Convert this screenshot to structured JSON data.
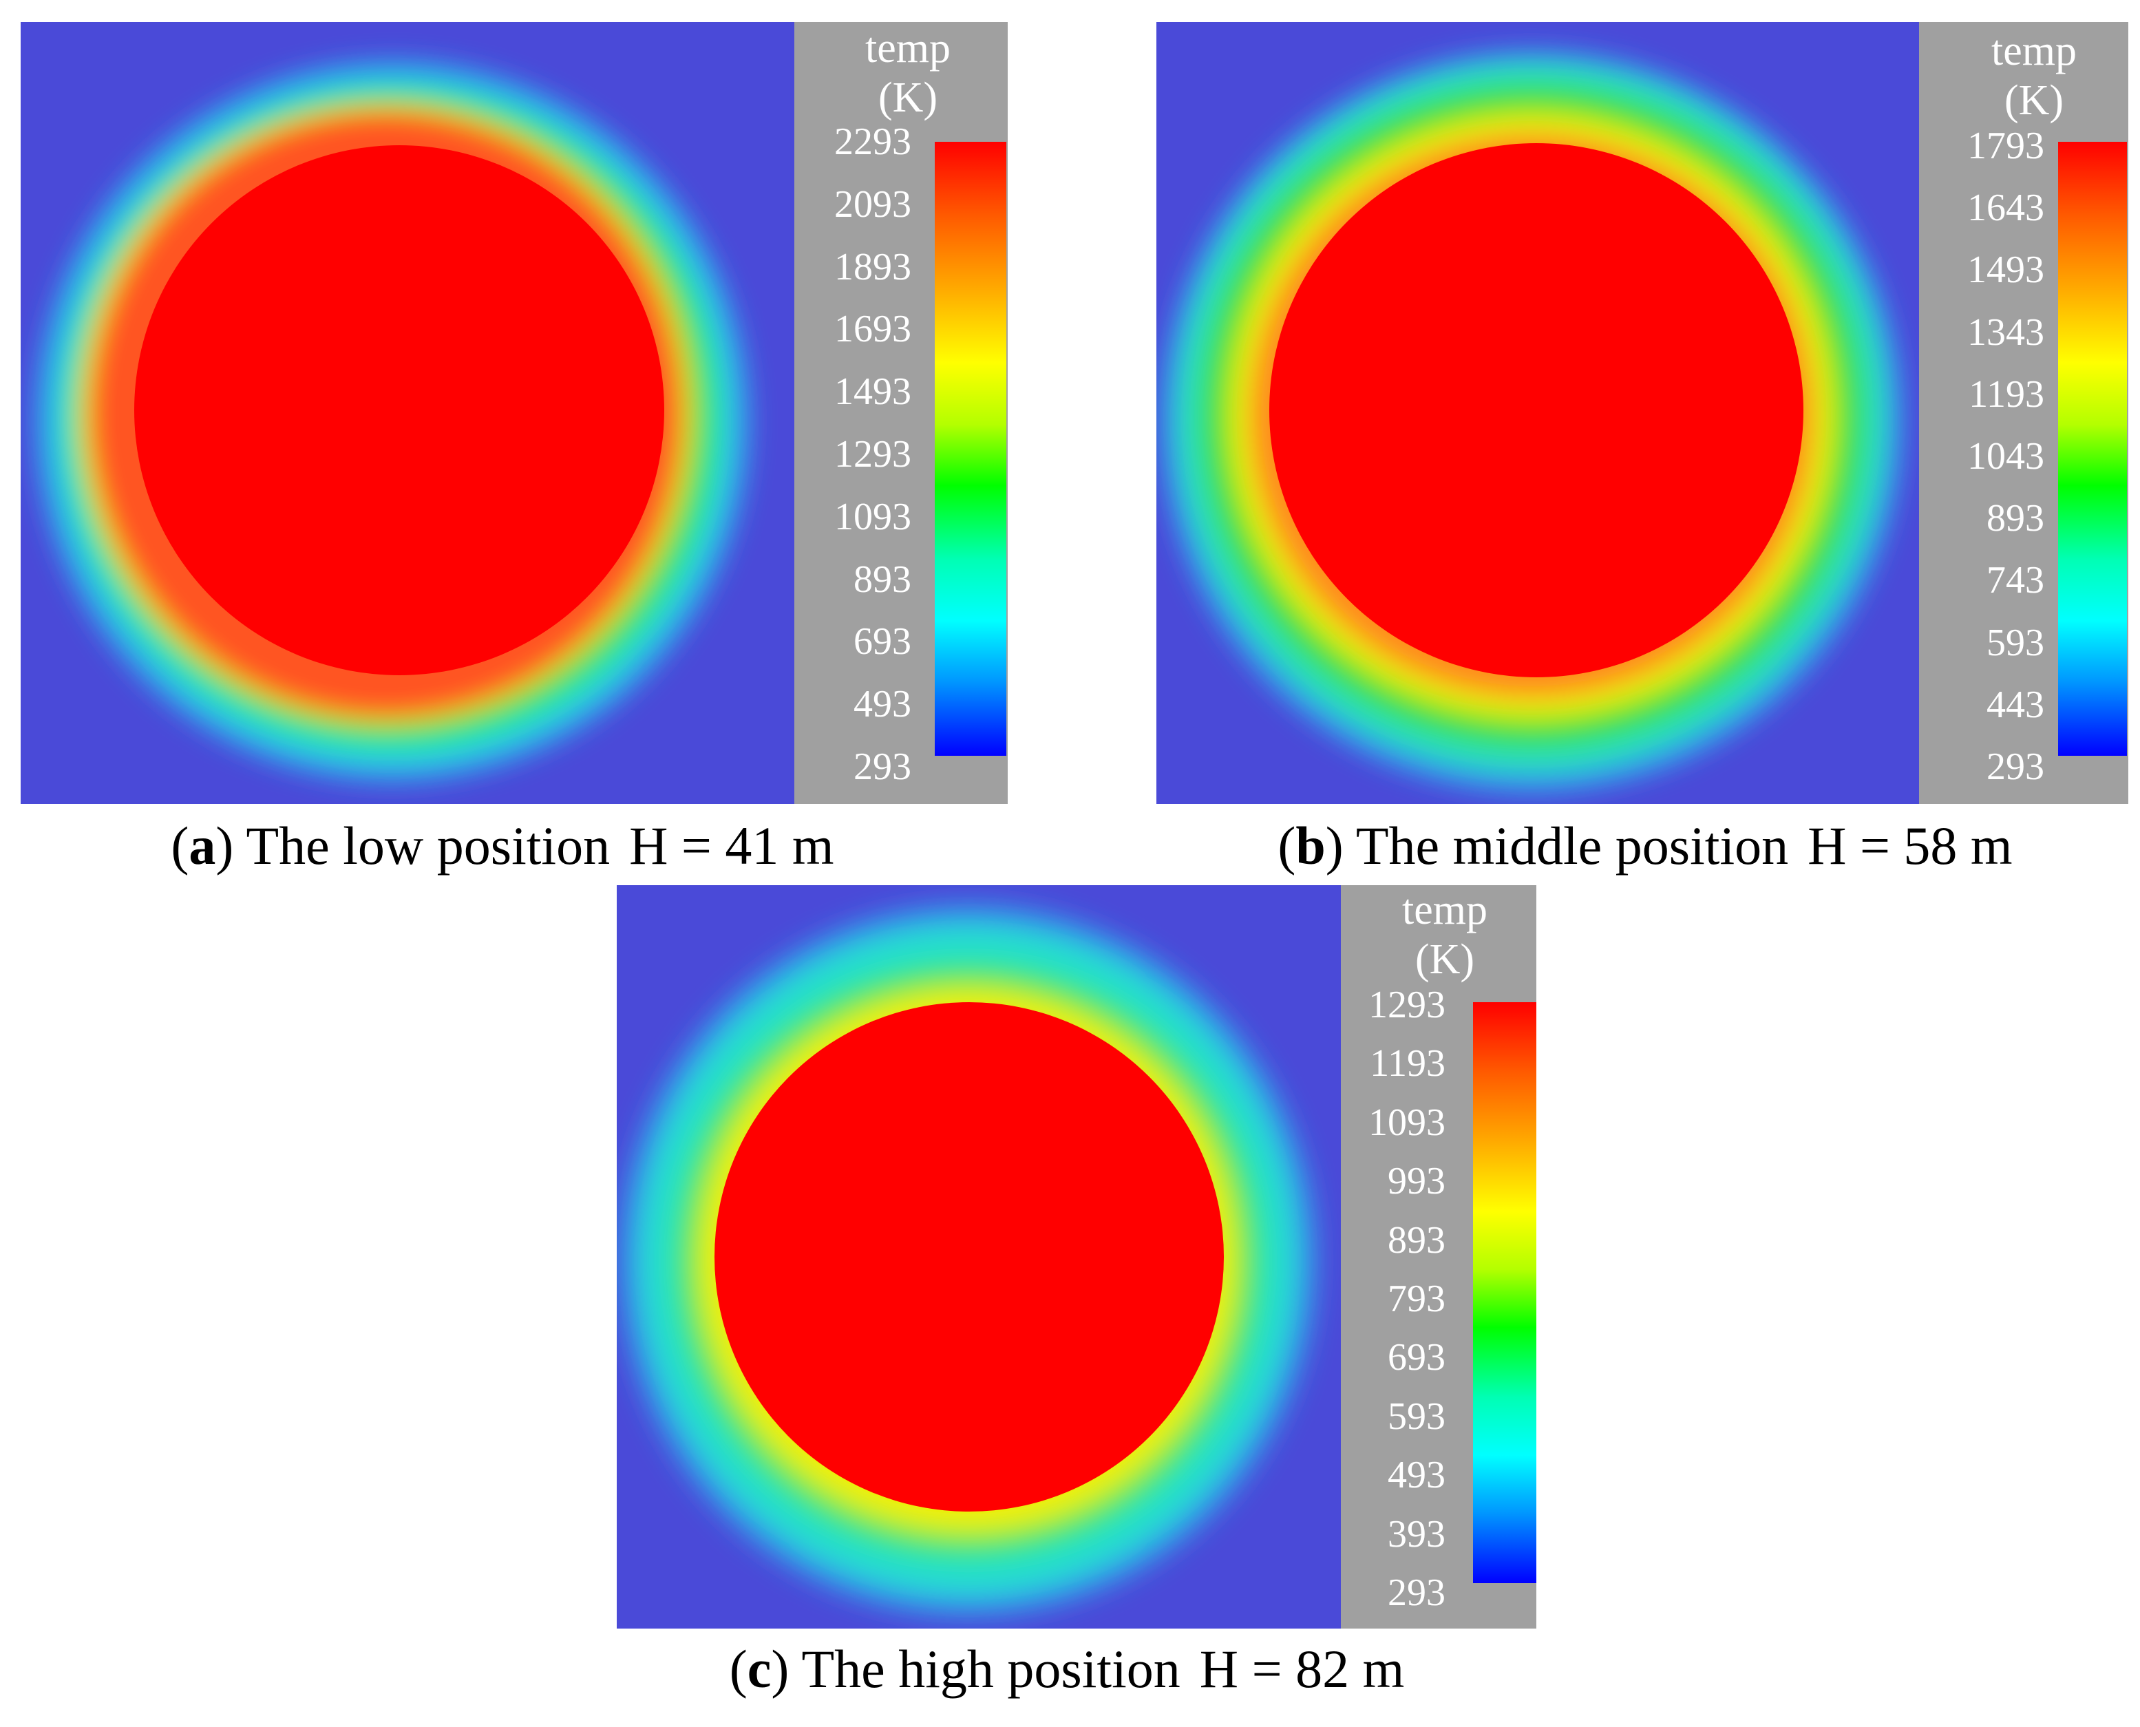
{
  "chart_data": [
    {
      "type": "heatmap",
      "panel_letter": "a",
      "caption": "The low position",
      "height_label": "H = 41 m",
      "colorbar_title": "temp",
      "colorbar_unit": "(K)",
      "colorbar_range": [
        293,
        2293
      ],
      "colorbar_ticks": [
        "2293",
        "2093",
        "1893",
        "1693",
        "1493",
        "1293",
        "1093",
        "893",
        "693",
        "493",
        "293"
      ]
    },
    {
      "type": "heatmap",
      "panel_letter": "b",
      "caption": "The middle position",
      "height_label": "H = 58 m",
      "colorbar_title": "temp",
      "colorbar_unit": "(K)",
      "colorbar_range": [
        293,
        1793
      ],
      "colorbar_ticks": [
        "1793",
        "1643",
        "1493",
        "1343",
        "1193",
        "1043",
        "893",
        "743",
        "593",
        "443",
        "293"
      ]
    },
    {
      "type": "heatmap",
      "panel_letter": "c",
      "caption": "The high position",
      "height_label": "H = 82 m",
      "colorbar_title": "temp",
      "colorbar_unit": "(K)",
      "colorbar_range": [
        293,
        1293
      ],
      "colorbar_ticks": [
        "1293",
        "1193",
        "1093",
        "993",
        "893",
        "793",
        "693",
        "593",
        "493",
        "393",
        "293"
      ]
    }
  ],
  "colors": {
    "background_field": "#4a4ad8",
    "hot_core": "#ff0000",
    "colorbar_panel": "#a0a0a0"
  }
}
